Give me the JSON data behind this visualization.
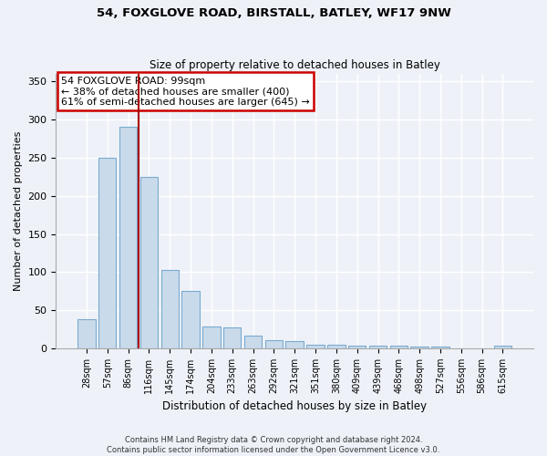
{
  "title1": "54, FOXGLOVE ROAD, BIRSTALL, BATLEY, WF17 9NW",
  "title2": "Size of property relative to detached houses in Batley",
  "xlabel": "Distribution of detached houses by size in Batley",
  "ylabel": "Number of detached properties",
  "categories": [
    "28sqm",
    "57sqm",
    "86sqm",
    "116sqm",
    "145sqm",
    "174sqm",
    "204sqm",
    "233sqm",
    "263sqm",
    "292sqm",
    "321sqm",
    "351sqm",
    "380sqm",
    "409sqm",
    "439sqm",
    "468sqm",
    "498sqm",
    "527sqm",
    "556sqm",
    "586sqm",
    "615sqm"
  ],
  "values": [
    38,
    250,
    291,
    225,
    103,
    75,
    29,
    28,
    17,
    11,
    10,
    5,
    5,
    4,
    4,
    3,
    2,
    2,
    0,
    0,
    3
  ],
  "bar_color": "#c9daea",
  "bar_edge_color": "#7aaad0",
  "property_line_x": 2.5,
  "annotation_text1": "54 FOXGLOVE ROAD: 99sqm",
  "annotation_text2": "← 38% of detached houses are smaller (400)",
  "annotation_text3": "61% of semi-detached houses are larger (645) →",
  "vline_color": "#aa0000",
  "annotation_box_color": "#ffffff",
  "annotation_box_edge": "#cc0000",
  "ylim": [
    0,
    360
  ],
  "yticks": [
    0,
    50,
    100,
    150,
    200,
    250,
    300,
    350
  ],
  "footer1": "Contains HM Land Registry data © Crown copyright and database right 2024.",
  "footer2": "Contains public sector information licensed under the Open Government Licence v3.0.",
  "bg_color": "#eef2f8",
  "plot_bg_color": "#eef2f8",
  "grid_color": "#ffffff"
}
